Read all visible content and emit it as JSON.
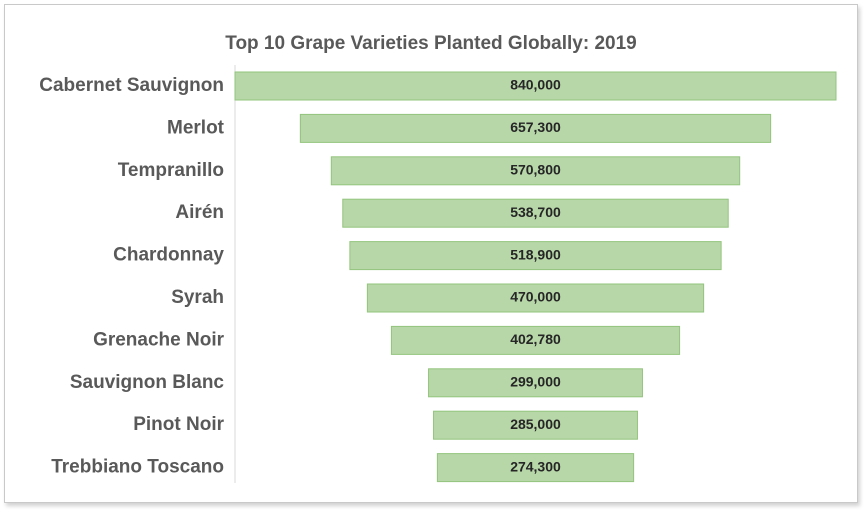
{
  "chart_data": {
    "type": "bar",
    "orientation": "horizontal-funnel",
    "title": "Top 10 Grape Varieties Planted Globally: 2019",
    "categories": [
      "Cabernet Sauvignon",
      "Merlot",
      "Tempranillo",
      "Airén",
      "Chardonnay",
      "Syrah",
      "Grenache Noir",
      "Sauvignon Blanc",
      "Pinot Noir",
      "Trebbiano Toscano"
    ],
    "values": [
      840000,
      657300,
      570800,
      538700,
      518900,
      470000,
      402780,
      299000,
      285000,
      274300
    ],
    "value_labels": [
      "840,000",
      "657,300",
      "570,800",
      "538,700",
      "518,900",
      "470,000",
      "402,780",
      "299,000",
      "285,000",
      "274,300"
    ],
    "bar_color": "#b7d7a8",
    "bar_border_color": "#93c47d",
    "grid": false,
    "legend": "none"
  }
}
